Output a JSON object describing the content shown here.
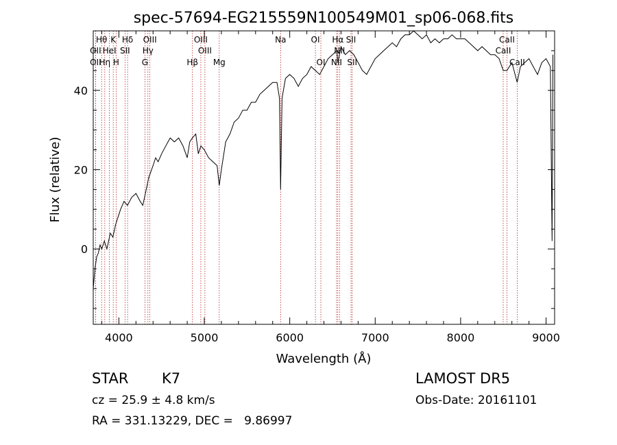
{
  "chart_data": {
    "type": "line",
    "title": "spec-57694-EG215559N100549M01_sp06-068.fits",
    "xlabel": "Wavelength (Å)",
    "ylabel": "Flux (relative)",
    "xlim": [
      3700,
      9100
    ],
    "ylim": [
      -19,
      55
    ],
    "xticks": [
      4000,
      5000,
      6000,
      7000,
      8000,
      9000
    ],
    "yticks": [
      0,
      20,
      40
    ],
    "grid": false,
    "series": [
      {
        "points": [
          [
            3700,
            -10
          ],
          [
            3720,
            -5
          ],
          [
            3740,
            -2
          ],
          [
            3760,
            -1
          ],
          [
            3780,
            1
          ],
          [
            3800,
            0
          ],
          [
            3830,
            2
          ],
          [
            3860,
            0
          ],
          [
            3900,
            4
          ],
          [
            3930,
            3
          ],
          [
            3960,
            6
          ],
          [
            3990,
            8
          ],
          [
            4020,
            10
          ],
          [
            4060,
            12
          ],
          [
            4100,
            11
          ],
          [
            4150,
            13
          ],
          [
            4200,
            14
          ],
          [
            4250,
            12
          ],
          [
            4280,
            11
          ],
          [
            4320,
            15
          ],
          [
            4350,
            18
          ],
          [
            4400,
            21
          ],
          [
            4430,
            23
          ],
          [
            4460,
            22
          ],
          [
            4500,
            24
          ],
          [
            4550,
            26
          ],
          [
            4600,
            28
          ],
          [
            4650,
            27
          ],
          [
            4700,
            28
          ],
          [
            4750,
            26
          ],
          [
            4800,
            23
          ],
          [
            4830,
            27
          ],
          [
            4860,
            28
          ],
          [
            4900,
            29
          ],
          [
            4930,
            24
          ],
          [
            4960,
            26
          ],
          [
            5000,
            25
          ],
          [
            5050,
            23
          ],
          [
            5100,
            22
          ],
          [
            5150,
            21
          ],
          [
            5175,
            16
          ],
          [
            5200,
            20
          ],
          [
            5250,
            27
          ],
          [
            5300,
            29
          ],
          [
            5350,
            32
          ],
          [
            5400,
            33
          ],
          [
            5450,
            35
          ],
          [
            5500,
            35
          ],
          [
            5550,
            37
          ],
          [
            5600,
            37
          ],
          [
            5650,
            39
          ],
          [
            5700,
            40
          ],
          [
            5750,
            41
          ],
          [
            5800,
            42
          ],
          [
            5850,
            42
          ],
          [
            5880,
            38
          ],
          [
            5893,
            15
          ],
          [
            5910,
            38
          ],
          [
            5950,
            43
          ],
          [
            6000,
            44
          ],
          [
            6050,
            43
          ],
          [
            6100,
            41
          ],
          [
            6150,
            43
          ],
          [
            6200,
            44
          ],
          [
            6250,
            46
          ],
          [
            6300,
            45
          ],
          [
            6350,
            44
          ],
          [
            6400,
            46
          ],
          [
            6450,
            48
          ],
          [
            6500,
            49
          ],
          [
            6550,
            50
          ],
          [
            6563,
            47
          ],
          [
            6600,
            51
          ],
          [
            6650,
            49
          ],
          [
            6700,
            50
          ],
          [
            6750,
            49
          ],
          [
            6800,
            47
          ],
          [
            6850,
            45
          ],
          [
            6900,
            44
          ],
          [
            6950,
            46
          ],
          [
            7000,
            48
          ],
          [
            7050,
            49
          ],
          [
            7100,
            50
          ],
          [
            7150,
            51
          ],
          [
            7200,
            52
          ],
          [
            7250,
            51
          ],
          [
            7300,
            53
          ],
          [
            7350,
            54
          ],
          [
            7400,
            54
          ],
          [
            7450,
            55
          ],
          [
            7500,
            54
          ],
          [
            7550,
            53
          ],
          [
            7600,
            54
          ],
          [
            7650,
            52
          ],
          [
            7700,
            53
          ],
          [
            7750,
            52
          ],
          [
            7800,
            53
          ],
          [
            7850,
            53
          ],
          [
            7900,
            54
          ],
          [
            7950,
            53
          ],
          [
            8000,
            53
          ],
          [
            8050,
            53
          ],
          [
            8100,
            52
          ],
          [
            8150,
            51
          ],
          [
            8200,
            50
          ],
          [
            8250,
            51
          ],
          [
            8300,
            50
          ],
          [
            8350,
            49
          ],
          [
            8400,
            49
          ],
          [
            8450,
            48
          ],
          [
            8498,
            45
          ],
          [
            8542,
            45
          ],
          [
            8600,
            47
          ],
          [
            8662,
            42
          ],
          [
            8700,
            46
          ],
          [
            8750,
            47
          ],
          [
            8800,
            48
          ],
          [
            8850,
            46
          ],
          [
            8900,
            44
          ],
          [
            8950,
            47
          ],
          [
            9000,
            48
          ],
          [
            9050,
            46
          ],
          [
            9070,
            2
          ],
          [
            9080,
            49
          ]
        ]
      }
    ],
    "annotations": {
      "lines": [
        {
          "label": "Hθ",
          "x": 3798
        },
        {
          "label": "K",
          "x": 3934
        },
        {
          "label": "Hδ",
          "x": 4102
        },
        {
          "label": "OIII",
          "x": 4363
        },
        {
          "label": "OIII",
          "x": 4959
        },
        {
          "label": "Na",
          "x": 5893
        },
        {
          "label": "OI",
          "x": 6300
        },
        {
          "label": "Hα",
          "x": 6563
        },
        {
          "label": "SII",
          "x": 6717
        },
        {
          "label": "CaII",
          "x": 8542
        },
        {
          "label": "OII",
          "x": 3727
        },
        {
          "label": "HeI",
          "x": 3889
        },
        {
          "label": "SII",
          "x": 4072
        },
        {
          "label": "Hγ",
          "x": 4340
        },
        {
          "label": "OIII",
          "x": 5007
        },
        {
          "label": "NII",
          "x": 6583
        },
        {
          "label": "CaII",
          "x": 8498
        },
        {
          "label": "OII",
          "x": 3727
        },
        {
          "label": "Hη",
          "x": 3835
        },
        {
          "label": "H",
          "x": 3968
        },
        {
          "label": "G",
          "x": 4305
        },
        {
          "label": "Hβ",
          "x": 4861
        },
        {
          "label": "Mg",
          "x": 5175
        },
        {
          "label": "OI",
          "x": 6364
        },
        {
          "label": "NII",
          "x": 6548
        },
        {
          "label": "SII",
          "x": 6731
        },
        {
          "label": "CaII",
          "x": 8662
        }
      ]
    }
  },
  "info": {
    "class": "STAR",
    "subclass": "K7",
    "survey": "LAMOST DR5",
    "redshift": "cz = 25.9 ± 4.8 km/s",
    "obsdate": "Obs-Date: 20161101",
    "coords": "RA = 331.13229, DEC =   9.86997"
  },
  "colors": {
    "line": "#000000",
    "marker": "#b22222",
    "axis": "#000000"
  }
}
